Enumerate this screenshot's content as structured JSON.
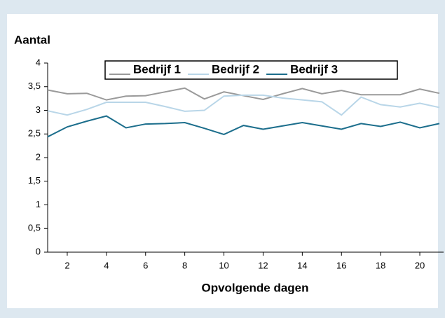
{
  "chart_data": {
    "type": "line",
    "ylabel": "Aantal",
    "xlabel": "Opvolgende dagen",
    "x": [
      1,
      2,
      3,
      4,
      5,
      6,
      7,
      8,
      9,
      10,
      11,
      12,
      13,
      14,
      15,
      16,
      17,
      18,
      19,
      20,
      21
    ],
    "series": [
      {
        "name": "Bedrijf 1",
        "color": "#9a9a9a",
        "values": [
          3.43,
          3.35,
          3.36,
          3.22,
          3.3,
          3.31,
          3.39,
          3.47,
          3.24,
          3.39,
          3.31,
          3.23,
          3.35,
          3.46,
          3.35,
          3.42,
          3.33,
          3.33,
          3.33,
          3.45,
          3.36
        ]
      },
      {
        "name": "Bedrijf 2",
        "color": "#b9d6e8",
        "values": [
          2.99,
          2.9,
          3.02,
          3.17,
          3.17,
          3.17,
          3.08,
          2.98,
          3.0,
          3.3,
          3.32,
          3.32,
          3.26,
          3.22,
          3.18,
          2.9,
          3.28,
          3.12,
          3.07,
          3.15,
          3.06
        ]
      },
      {
        "name": "Bedrijf 3",
        "color": "#1c6e8c",
        "values": [
          2.44,
          2.65,
          2.77,
          2.88,
          2.63,
          2.71,
          2.72,
          2.74,
          2.62,
          2.49,
          2.68,
          2.6,
          2.67,
          2.74,
          2.67,
          2.6,
          2.72,
          2.66,
          2.75,
          2.63,
          2.72
        ]
      }
    ],
    "xlim": [
      1,
      21
    ],
    "xticks": [
      2,
      4,
      6,
      8,
      10,
      12,
      14,
      16,
      18,
      20
    ],
    "ylim": [
      0,
      4
    ],
    "yticks": [
      0,
      {
        "value": 0.5,
        "label": "0,5"
      },
      1,
      {
        "value": 1.5,
        "label": "1,5"
      },
      2,
      {
        "value": 2.5,
        "label": "2,5"
      },
      3,
      {
        "value": 3.5,
        "label": "3,5"
      },
      4
    ],
    "legend": "top",
    "grid": false
  }
}
